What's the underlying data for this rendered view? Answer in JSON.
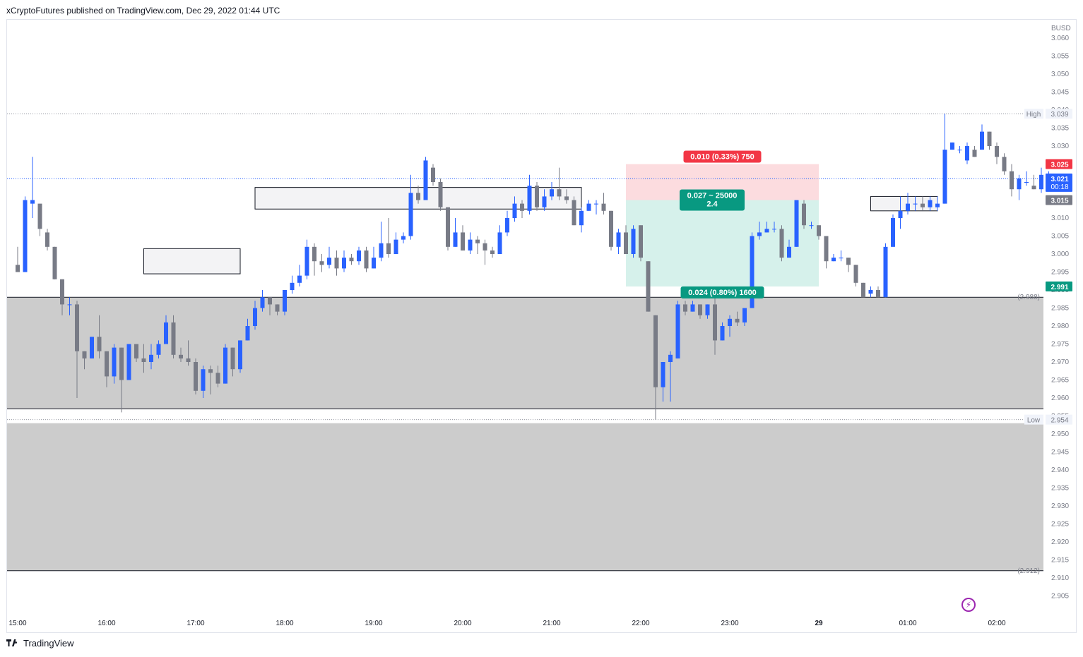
{
  "header": {
    "publisher_line": "xCryptoFutures published on TradingView.com, Dec 29, 2022 01:44 UTC"
  },
  "footer": {
    "brand": "TradingView"
  },
  "colors": {
    "up": "#2962ff",
    "down": "#787b86",
    "zone_gray": "#cccccc",
    "stop_zone": "#fcd8db",
    "target_zone": "#d2efe9",
    "stop_label_bg": "#f23645",
    "target_label_bg": "#089981",
    "current_price_bg": "#2962ff",
    "level_3025_bg": "#f23645",
    "level_2991_bg": "#089981",
    "level_3015_bg": "#787b86"
  },
  "chart_data": {
    "type": "candlestick",
    "currency": "BUSD",
    "ylim": [
      2.9,
      3.062
    ],
    "y_ticks": [
      "3.060",
      "3.055",
      "3.050",
      "3.045",
      "3.040",
      "3.035",
      "3.030",
      "3.025",
      "3.020",
      "3.015",
      "3.010",
      "3.005",
      "3.000",
      "2.995",
      "2.990",
      "2.985",
      "2.980",
      "2.975",
      "2.970",
      "2.965",
      "2.960",
      "2.955",
      "2.950",
      "2.945",
      "2.940",
      "2.935",
      "2.930",
      "2.925",
      "2.920",
      "2.915",
      "2.910",
      "2.905"
    ],
    "x_ticks": [
      {
        "label": "15:00",
        "t": 0
      },
      {
        "label": "16:00",
        "t": 60
      },
      {
        "label": "17:00",
        "t": 120
      },
      {
        "label": "18:00",
        "t": 180
      },
      {
        "label": "19:00",
        "t": 240
      },
      {
        "label": "20:00",
        "t": 300
      },
      {
        "label": "21:00",
        "t": 360
      },
      {
        "label": "22:00",
        "t": 420
      },
      {
        "label": "23:00",
        "t": 480
      },
      {
        "label": "29",
        "t": 540
      },
      {
        "label": "01:00",
        "t": 600
      },
      {
        "label": "02:00",
        "t": 660
      }
    ],
    "candle_interval_minutes": 5,
    "candles": [
      [
        2.997,
        2.995,
        3.002,
        2.995
      ],
      [
        2.995,
        3.015,
        3.016,
        2.995
      ],
      [
        3.014,
        3.015,
        3.027,
        3.01
      ],
      [
        3.014,
        3.007,
        3.014,
        3.005
      ],
      [
        3.006,
        3.002,
        3.007,
        3.001
      ],
      [
        3.002,
        2.993,
        3.002,
        2.993
      ],
      [
        2.993,
        2.986,
        2.993,
        2.983
      ],
      [
        2.986,
        2.986,
        2.988,
        2.983
      ],
      [
        2.986,
        2.973,
        2.987,
        2.96
      ],
      [
        2.973,
        2.971,
        2.973,
        2.968
      ],
      [
        2.971,
        2.977,
        2.977,
        2.971
      ],
      [
        2.977,
        2.973,
        2.983,
        2.971
      ],
      [
        2.973,
        2.966,
        2.973,
        2.963
      ],
      [
        2.966,
        2.974,
        2.975,
        2.964
      ],
      [
        2.974,
        2.965,
        2.974,
        2.956
      ],
      [
        2.965,
        2.975,
        2.975,
        2.965
      ],
      [
        2.975,
        2.971,
        2.975,
        2.97
      ],
      [
        2.971,
        2.97,
        2.975,
        2.967
      ],
      [
        2.97,
        2.972,
        2.975,
        2.968
      ],
      [
        2.972,
        2.975,
        2.976,
        2.971
      ],
      [
        2.975,
        2.981,
        2.983,
        2.975
      ],
      [
        2.981,
        2.972,
        2.983,
        2.971
      ],
      [
        2.972,
        2.971,
        2.974,
        2.97
      ],
      [
        2.971,
        2.97,
        2.976,
        2.969
      ],
      [
        2.97,
        2.962,
        2.971,
        2.961
      ],
      [
        2.962,
        2.968,
        2.969,
        2.96
      ],
      [
        2.968,
        2.967,
        2.969,
        2.961
      ],
      [
        2.967,
        2.964,
        2.969,
        2.963
      ],
      [
        2.964,
        2.974,
        2.975,
        2.964
      ],
      [
        2.974,
        2.968,
        2.974,
        2.966
      ],
      [
        2.968,
        2.976,
        2.976,
        2.967
      ],
      [
        2.976,
        2.98,
        2.982,
        2.976
      ],
      [
        2.98,
        2.985,
        2.987,
        2.979
      ],
      [
        2.985,
        2.988,
        2.99,
        2.984
      ],
      [
        2.988,
        2.986,
        2.988,
        2.983
      ],
      [
        2.986,
        2.984,
        2.986,
        2.983
      ],
      [
        2.984,
        2.99,
        2.99,
        2.983
      ],
      [
        2.99,
        2.992,
        2.994,
        2.989
      ],
      [
        2.992,
        2.994,
        2.997,
        2.991
      ],
      [
        2.994,
        3.002,
        3.004,
        2.993
      ],
      [
        3.002,
        2.998,
        3.003,
        2.994
      ],
      [
        2.998,
        2.997,
        3.0,
        2.995
      ],
      [
        2.997,
        2.999,
        3.002,
        2.996
      ],
      [
        2.999,
        2.996,
        3.001,
        2.994
      ],
      [
        2.996,
        2.999,
        3.001,
        2.995
      ],
      [
        2.999,
        2.998,
        3.0,
        2.997
      ],
      [
        2.998,
        3.001,
        3.002,
        2.997
      ],
      [
        3.001,
        2.996,
        3.002,
        2.995
      ],
      [
        2.996,
        2.999,
        3.002,
        2.996
      ],
      [
        2.999,
        3.003,
        3.009,
        2.998
      ],
      [
        3.003,
        3.0,
        3.01,
        2.999
      ],
      [
        3.0,
        3.004,
        3.006,
        3.0
      ],
      [
        3.004,
        3.005,
        3.006,
        3.003
      ],
      [
        3.005,
        3.017,
        3.022,
        3.004
      ],
      [
        3.017,
        3.015,
        3.019,
        3.014
      ],
      [
        3.015,
        3.026,
        3.027,
        3.015
      ],
      [
        3.024,
        3.02,
        3.025,
        3.019
      ],
      [
        3.02,
        3.013,
        3.021,
        3.012
      ],
      [
        3.013,
        3.002,
        3.013,
        3.001
      ],
      [
        3.002,
        3.006,
        3.01,
        3.002
      ],
      [
        3.006,
        3.001,
        3.008,
        3.001
      ],
      [
        3.001,
        3.004,
        3.006,
        3.0
      ],
      [
        3.004,
        3.003,
        3.005,
        3.0
      ],
      [
        3.003,
        3.001,
        3.004,
        2.997
      ],
      [
        3.001,
        3.0,
        3.002,
        2.999
      ],
      [
        3.0,
        3.006,
        3.008,
        3.0
      ],
      [
        3.006,
        3.01,
        3.012,
        3.005
      ],
      [
        3.01,
        3.014,
        3.016,
        3.009
      ],
      [
        3.014,
        3.012,
        3.015,
        3.01
      ],
      [
        3.012,
        3.019,
        3.022,
        3.011
      ],
      [
        3.019,
        3.013,
        3.02,
        3.012
      ],
      [
        3.013,
        3.016,
        3.018,
        3.012
      ],
      [
        3.016,
        3.018,
        3.02,
        3.015
      ],
      [
        3.018,
        3.016,
        3.024,
        3.015
      ],
      [
        3.016,
        3.015,
        3.018,
        3.014
      ],
      [
        3.015,
        3.008,
        3.016,
        3.008
      ],
      [
        3.008,
        3.012,
        3.013,
        3.006
      ],
      [
        3.012,
        3.014,
        3.015,
        3.012
      ],
      [
        3.014,
        3.014,
        3.015,
        3.011
      ],
      [
        3.014,
        3.012,
        3.017,
        3.011
      ],
      [
        3.012,
        3.002,
        3.012,
        3.001
      ],
      [
        3.002,
        3.006,
        3.007,
        3.0
      ],
      [
        3.006,
        3.0,
        3.008,
        3.0
      ],
      [
        3.0,
        3.007,
        3.008,
        2.999
      ],
      [
        3.008,
        2.999,
        3.008,
        2.998
      ],
      [
        2.998,
        2.984,
        2.998,
        2.984
      ],
      [
        2.983,
        2.963,
        2.983,
        2.954
      ],
      [
        2.963,
        2.97,
        2.97,
        2.959
      ],
      [
        2.97,
        2.972,
        2.973,
        2.959
      ],
      [
        2.971,
        2.986,
        2.987,
        2.971
      ],
      [
        2.986,
        2.984,
        2.987,
        2.983
      ],
      [
        2.984,
        2.986,
        2.987,
        2.984
      ],
      [
        2.986,
        2.983,
        2.986,
        2.982
      ],
      [
        2.983,
        2.986,
        2.986,
        2.982
      ],
      [
        2.986,
        2.976,
        2.99,
        2.972
      ],
      [
        2.976,
        2.98,
        2.981,
        2.976
      ],
      [
        2.98,
        2.982,
        2.983,
        2.977
      ],
      [
        2.982,
        2.981,
        2.984,
        2.98
      ],
      [
        2.981,
        2.985,
        2.985,
        2.98
      ],
      [
        2.985,
        3.005,
        3.006,
        2.985
      ],
      [
        3.005,
        3.006,
        3.009,
        3.004
      ],
      [
        3.006,
        3.007,
        3.009,
        3.006
      ],
      [
        3.007,
        3.007,
        3.009,
        3.006
      ],
      [
        3.007,
        2.999,
        3.008,
        2.998
      ],
      [
        2.999,
        3.002,
        3.004,
        2.999
      ],
      [
        3.002,
        3.015,
        3.015,
        3.002
      ],
      [
        3.014,
        3.008,
        3.015,
        3.007
      ],
      [
        3.008,
        3.008,
        3.009,
        3.007
      ],
      [
        3.008,
        3.005,
        3.008,
        3.004
      ],
      [
        3.005,
        2.998,
        3.005,
        2.996
      ],
      [
        2.998,
        2.999,
        3.0,
        2.998
      ],
      [
        2.999,
        2.999,
        3.001,
        2.998
      ],
      [
        2.999,
        2.997,
        2.999,
        2.995
      ],
      [
        2.997,
        2.992,
        2.997,
        2.991
      ],
      [
        2.992,
        2.988,
        2.992,
        2.988
      ],
      [
        2.989,
        2.99,
        2.991,
        2.988
      ],
      [
        2.99,
        2.988,
        2.991,
        2.988
      ],
      [
        2.988,
        3.002,
        3.003,
        2.988
      ],
      [
        3.002,
        3.01,
        3.011,
        3.002
      ],
      [
        3.01,
        3.012,
        3.016,
        3.007
      ],
      [
        3.012,
        3.014,
        3.017,
        3.011
      ],
      [
        3.014,
        3.014,
        3.016,
        3.012
      ],
      [
        3.014,
        3.013,
        3.016,
        3.012
      ],
      [
        3.013,
        3.015,
        3.016,
        3.012
      ],
      [
        3.013,
        3.014,
        3.016,
        3.012
      ],
      [
        3.014,
        3.029,
        3.039,
        3.014
      ],
      [
        3.029,
        3.031,
        3.031,
        3.029
      ],
      [
        3.029,
        3.029,
        3.03,
        3.028
      ],
      [
        3.026,
        3.03,
        3.031,
        3.025
      ],
      [
        3.029,
        3.027,
        3.03,
        3.027
      ],
      [
        3.029,
        3.034,
        3.036,
        3.029
      ],
      [
        3.034,
        3.03,
        3.034,
        3.029
      ],
      [
        3.03,
        3.027,
        3.031,
        3.025
      ],
      [
        3.027,
        3.023,
        3.028,
        3.022
      ],
      [
        3.023,
        3.018,
        3.025,
        3.016
      ],
      [
        3.018,
        3.021,
        3.022,
        3.015
      ],
      [
        3.02,
        3.02,
        3.023,
        3.019
      ],
      [
        3.019,
        3.018,
        3.022,
        3.018
      ],
      [
        3.018,
        3.022,
        3.024,
        3.017
      ],
      [
        3.018,
        3.021,
        3.023,
        3.018
      ]
    ],
    "zones": [
      {
        "name": "demand-zone-upper",
        "y_top": 2.988,
        "y_bottom": 2.957,
        "fill": "#cccccc"
      },
      {
        "name": "demand-zone-lower",
        "y_top": 2.953,
        "y_bottom": 2.912,
        "fill": "#cccccc"
      }
    ],
    "boxes": [
      {
        "name": "order-block-1",
        "t_start": 85,
        "t_end": 150,
        "y_top": 3.0015,
        "y_bottom": 2.9945
      },
      {
        "name": "order-block-2",
        "t_start": 160,
        "t_end": 380,
        "y_top": 3.0185,
        "y_bottom": 3.0125
      },
      {
        "name": "order-block-3",
        "t_start": 575,
        "t_end": 620,
        "y_top": 3.016,
        "y_bottom": 3.012
      }
    ],
    "position": {
      "t_start": 410,
      "t_end": 540,
      "entry": 3.015,
      "stop": 3.025,
      "target": 2.991,
      "stop_label": "0.010 (0.33%) 750",
      "center_label_line1": "0.027 ~ 25000",
      "center_label_line2": "2.4",
      "target_label": "0.024 (0.80%) 1600"
    },
    "horizontal_lines": [
      {
        "name": "level-2988",
        "y": 2.988,
        "label": "(2.988)"
      },
      {
        "name": "level-2912",
        "y": 2.912,
        "label": "(2.912)"
      },
      {
        "name": "level-2957",
        "y": 2.957,
        "label": ""
      }
    ],
    "high": {
      "label": "High",
      "value": "3.039",
      "y": 3.039
    },
    "low": {
      "label": "Low",
      "value": "2.954",
      "y": 2.954
    },
    "price_tags": [
      {
        "name": "stop-price-tag",
        "value": "3.025",
        "y": 3.025,
        "bg": "#f23645"
      },
      {
        "name": "current-price-tag",
        "value": "3.021",
        "sub": "00:18",
        "y": 3.021,
        "bg": "#2962ff"
      },
      {
        "name": "entry-price-tag",
        "value": "3.015",
        "y": 3.015,
        "bg": "#787b86"
      },
      {
        "name": "target-price-tag",
        "value": "2.991",
        "y": 2.991,
        "bg": "#089981"
      }
    ],
    "current_price_line": 3.021
  }
}
